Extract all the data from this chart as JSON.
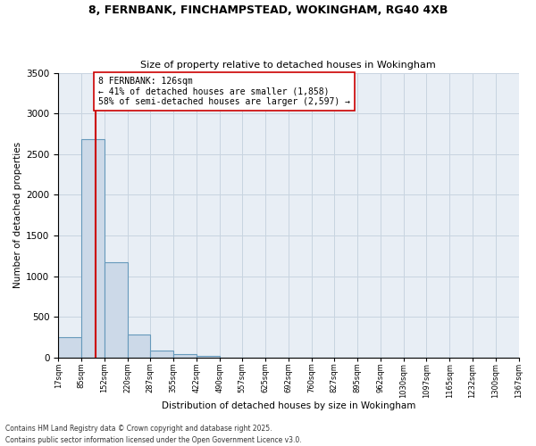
{
  "title_line1": "8, FERNBANK, FINCHAMPSTEAD, WOKINGHAM, RG40 4XB",
  "title_line2": "Size of property relative to detached houses in Wokingham",
  "xlabel": "Distribution of detached houses by size in Wokingham",
  "ylabel": "Number of detached properties",
  "bin_edges": [
    17,
    85,
    152,
    220,
    287,
    355,
    422,
    490,
    557,
    625,
    692,
    760,
    827,
    895,
    962,
    1030,
    1097,
    1165,
    1232,
    1300,
    1367
  ],
  "bin_counts": [
    250,
    2680,
    1175,
    290,
    90,
    45,
    20,
    0,
    0,
    0,
    0,
    0,
    0,
    0,
    0,
    0,
    0,
    0,
    0,
    0
  ],
  "property_size": 126,
  "red_line_x": 126,
  "annotation_text": "8 FERNBANK: 126sqm\n← 41% of detached houses are smaller (1,858)\n58% of semi-detached houses are larger (2,597) →",
  "bar_facecolor": "#ccd9e8",
  "bar_edgecolor": "#6699bb",
  "redline_color": "#cc0000",
  "annotation_boxcolor": "#ffffff",
  "annotation_bordercolor": "#cc0000",
  "axes_background": "#e8eef5",
  "fig_background": "#ffffff",
  "grid_color": "#c8d4e0",
  "yticks": [
    0,
    500,
    1000,
    1500,
    2000,
    2500,
    3000,
    3500
  ],
  "ylim": [
    0,
    3500
  ],
  "footnote1": "Contains HM Land Registry data © Crown copyright and database right 2025.",
  "footnote2": "Contains public sector information licensed under the Open Government Licence v3.0."
}
